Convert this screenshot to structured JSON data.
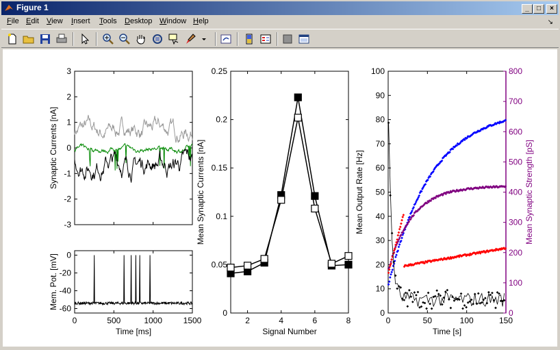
{
  "window": {
    "title": "Figure 1"
  },
  "menu": [
    {
      "label": "File",
      "u": "F"
    },
    {
      "label": "Edit",
      "u": "E"
    },
    {
      "label": "View",
      "u": "V"
    },
    {
      "label": "Insert",
      "u": "I"
    },
    {
      "label": "Tools",
      "u": "T"
    },
    {
      "label": "Desktop",
      "u": "D"
    },
    {
      "label": "Window",
      "u": "W"
    },
    {
      "label": "Help",
      "u": "H"
    }
  ],
  "toolbar": [
    "new-figure-icon",
    "open-file-icon",
    "save-icon",
    "print-icon",
    "select-arrow-icon",
    "zoom-in-icon",
    "zoom-out-icon",
    "pan-hand-icon",
    "rotate-3d-icon",
    "data-cursor-icon",
    "brush-icon",
    "link-plot-icon",
    "colorbar-icon",
    "legend-icon",
    "hide-plot-tools-icon",
    "show-plot-tools-icon"
  ],
  "chart_data": [
    {
      "type": "line",
      "id": "synaptic-currents",
      "xlabel": "",
      "ylabel": "Synaptic Currents [nA]",
      "xlim": [
        0,
        1500
      ],
      "ylim": [
        -3,
        3
      ],
      "xticks": [
        0,
        500,
        1000,
        1500
      ],
      "yticks": [
        -3,
        -2,
        -1,
        0,
        1,
        2,
        3
      ],
      "series": [
        {
          "color": "#999999",
          "mean": 0.7,
          "amp": 0.35
        },
        {
          "color": "#008800",
          "mean": -0.05,
          "amp": 0.12
        },
        {
          "color": "#000000",
          "mean": -0.6,
          "amp": 0.4
        }
      ]
    },
    {
      "type": "line",
      "id": "membrane-potential",
      "xlabel": "Time [ms]",
      "ylabel": "Mem. Pot. [mV]",
      "xlim": [
        0,
        1500
      ],
      "ylim": [
        -65,
        5
      ],
      "xticks": [
        0,
        500,
        1000,
        1500
      ],
      "yticks": [
        -60,
        -40,
        -20,
        0
      ],
      "baseline": -54,
      "spikes": [
        250,
        630,
        720,
        780,
        830,
        960
      ]
    },
    {
      "type": "line",
      "id": "signal-currents",
      "xlabel": "Signal Number",
      "ylabel": "Mean Synaptic Currents [nA]",
      "xlim": [
        1,
        8
      ],
      "ylim": [
        0,
        0.25
      ],
      "xticks": [
        2,
        4,
        6,
        8
      ],
      "yticks": [
        0,
        0.05,
        0.1,
        0.15,
        0.2,
        0.25
      ],
      "x": [
        1,
        2,
        3,
        4,
        5,
        6,
        7,
        8
      ],
      "series": [
        {
          "marker": "filled-square",
          "values": [
            0.041,
            0.043,
            0.052,
            0.122,
            0.223,
            0.121,
            0.049,
            0.05
          ]
        },
        {
          "marker": "open-square",
          "values": [
            0.047,
            0.049,
            0.056,
            0.117,
            0.202,
            0.108,
            0.051,
            0.059
          ]
        }
      ]
    },
    {
      "type": "scatter",
      "id": "output-rate-strength",
      "xlabel": "Time [s]",
      "ylabel": "Mean Output Rate [Hz]",
      "ylabel_right": "Mean Synaptic Strength [pS]",
      "xlim": [
        0,
        150
      ],
      "ylim": [
        0,
        100
      ],
      "ylim_right": [
        0,
        800
      ],
      "xticks": [
        0,
        50,
        100,
        150
      ],
      "yticks": [
        0,
        10,
        20,
        30,
        40,
        50,
        60,
        70,
        80,
        90,
        100
      ],
      "yticks_right": [
        0,
        100,
        200,
        300,
        400,
        500,
        600,
        700,
        800
      ],
      "right_axis_color": "#800080",
      "series": [
        {
          "color": "#0000ff",
          "axis": "right",
          "start": 90,
          "end": 675
        },
        {
          "color": "#800080",
          "axis": "right",
          "start": 140,
          "end": 420
        },
        {
          "color": "#ff0000",
          "axis": "right",
          "start": 130,
          "end": 215
        },
        {
          "color": "#000000",
          "axis": "left",
          "start": 90,
          "end": 5
        }
      ]
    }
  ]
}
